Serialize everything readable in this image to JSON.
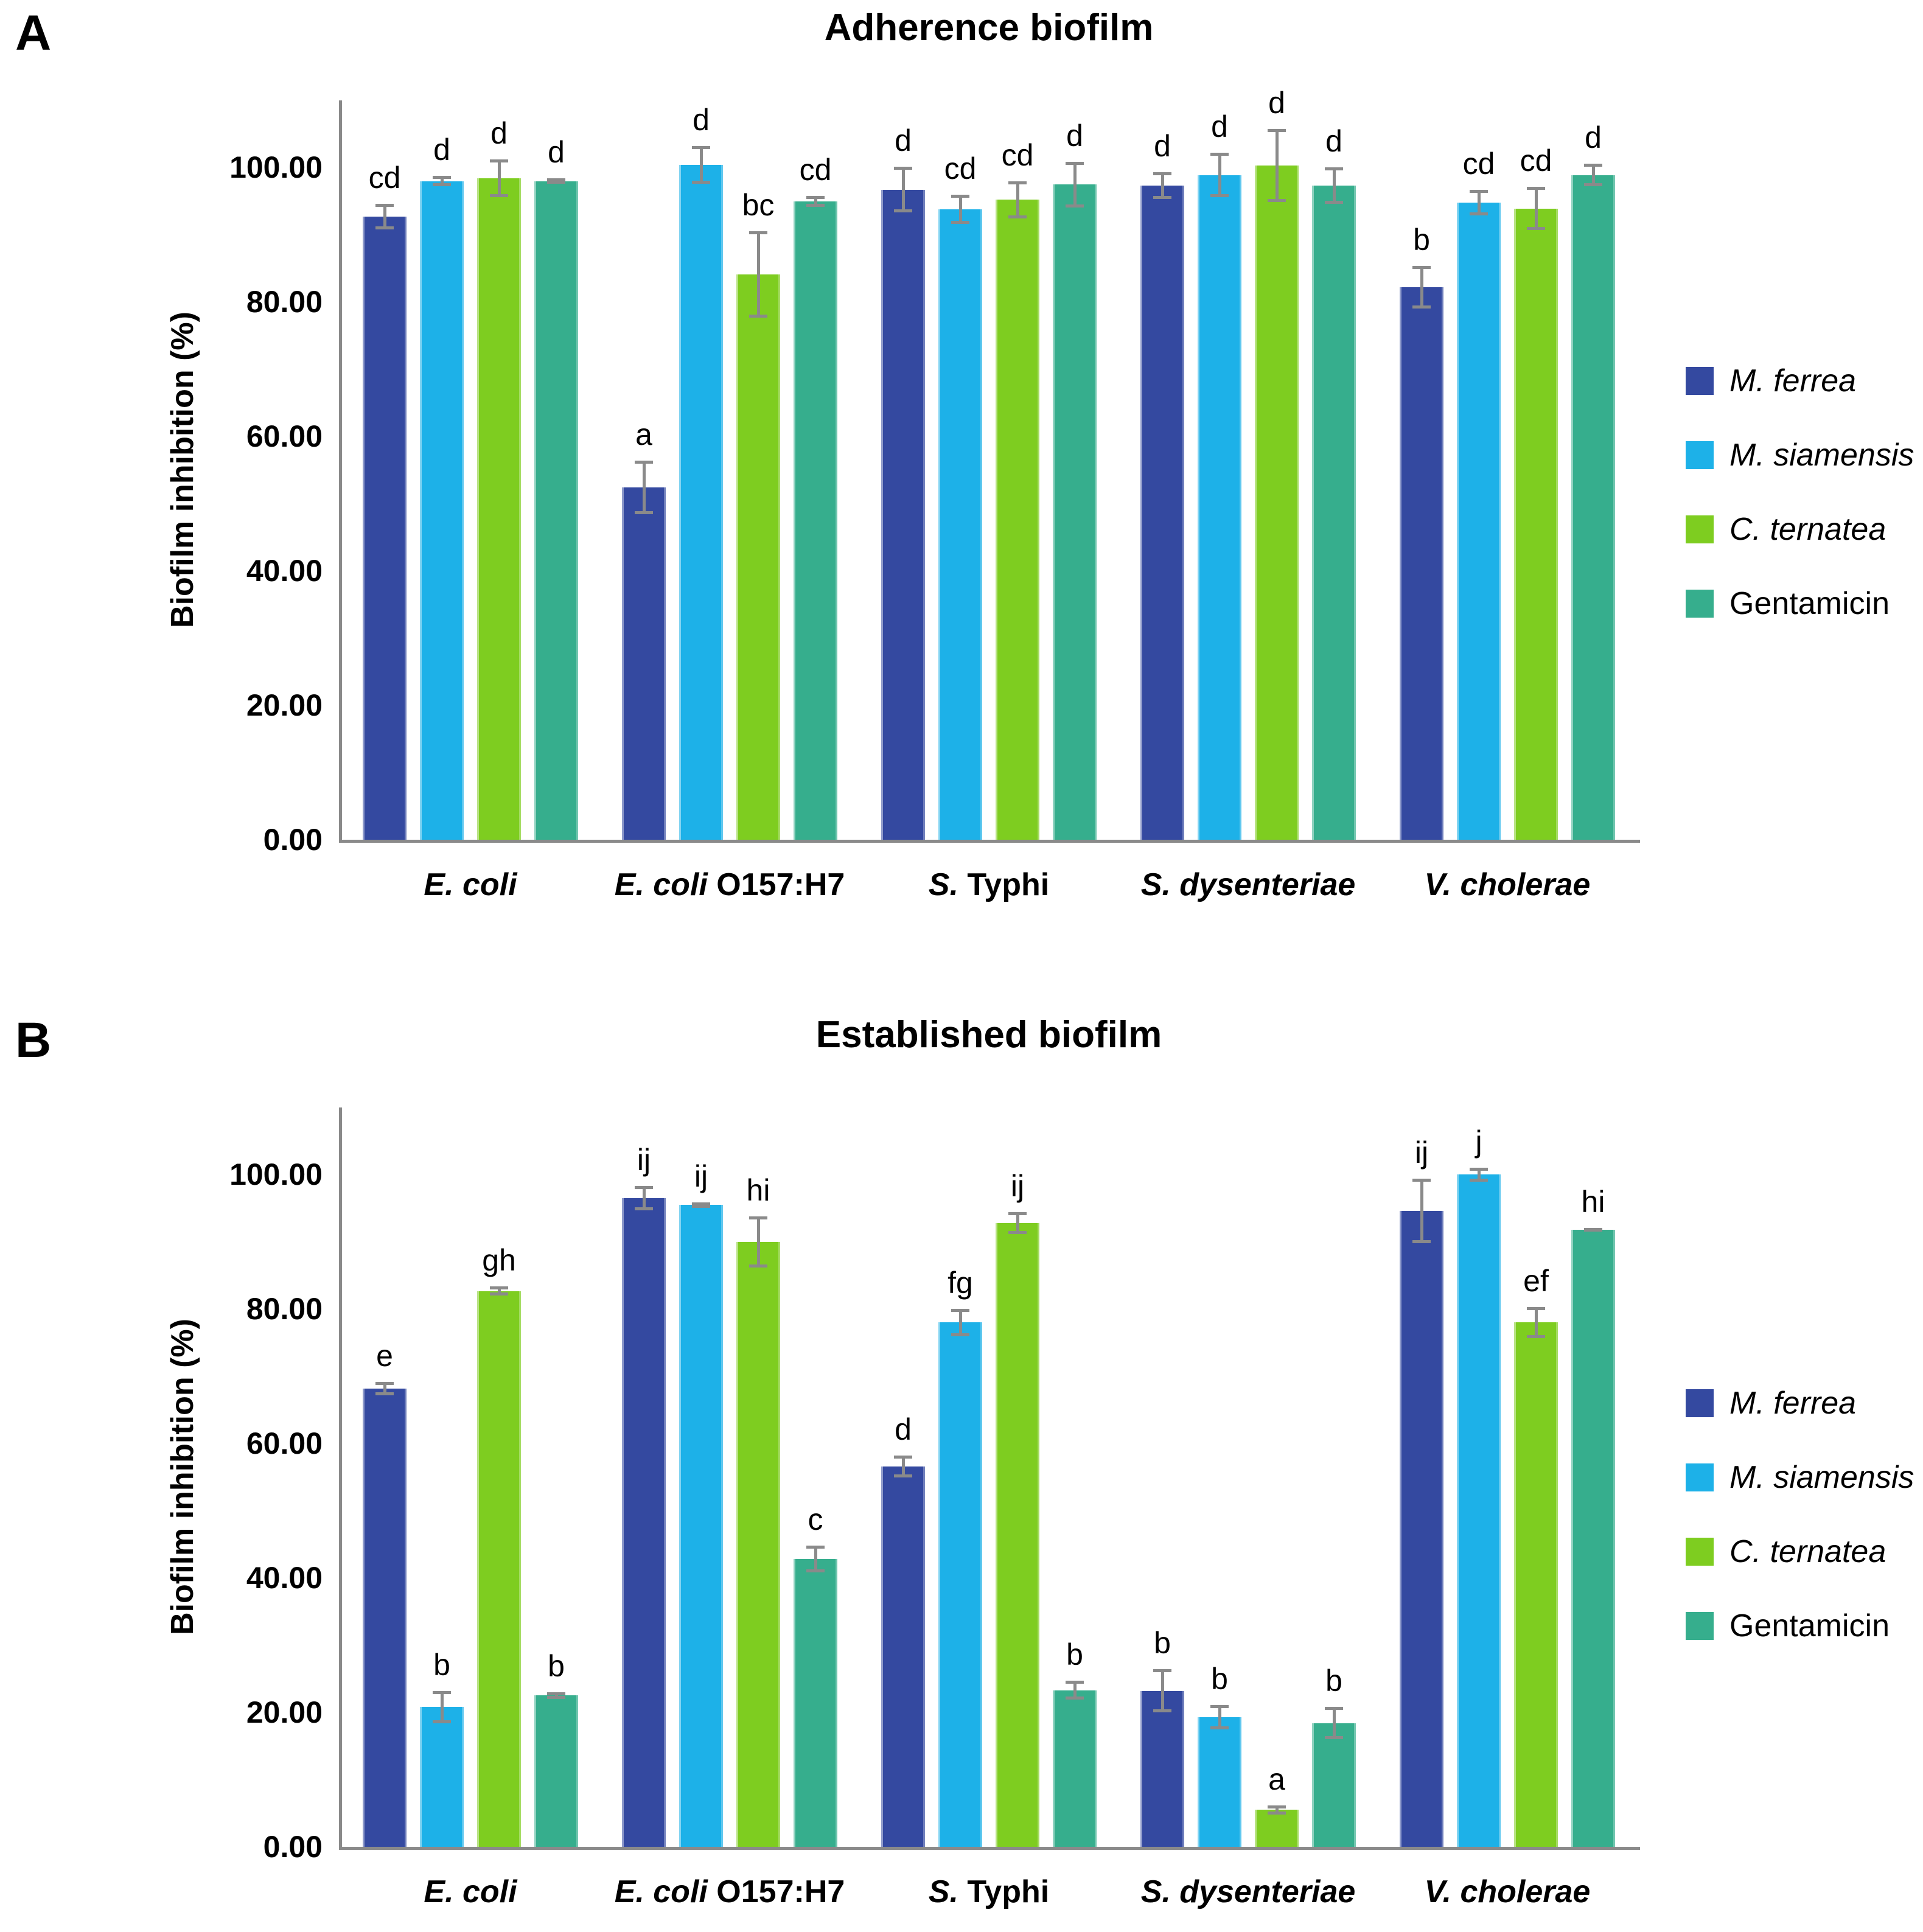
{
  "colors": {
    "m_ferrea": "#3449a0",
    "m_siamensis": "#1db1e8",
    "c_ternatea": "#7ecd20",
    "gentamicin": "#36ae8d",
    "error_bar": "#8a8a8a",
    "axis": "#8a8a8a",
    "text": "#000000",
    "background": "#ffffff"
  },
  "chart_data": [
    {
      "type": "bar",
      "panel_label": "A",
      "title": "Adherence biofilm",
      "ylabel": "Biofilm inhibition (%)",
      "ylim": [
        0,
        110
      ],
      "yticks": [
        0,
        20,
        40,
        60,
        80,
        100
      ],
      "ytick_labels": [
        "0.00",
        "20.00",
        "40.00",
        "60.00",
        "80.00",
        "100.00"
      ],
      "grid": false,
      "legend_position": "right",
      "error_bars": true,
      "categories": [
        "E. coli",
        "E. coli O157:H7",
        "S. Typhi",
        "S. dysenteriae",
        "V. cholerae"
      ],
      "categories_rich": [
        [
          {
            "text": "E. coli",
            "italic": true
          }
        ],
        [
          {
            "text": "E. coli ",
            "italic": true
          },
          {
            "text": "O157:H7",
            "italic": false
          }
        ],
        [
          {
            "text": "S.",
            "italic": true
          },
          {
            "text": " Typhi",
            "italic": false
          }
        ],
        [
          {
            "text": "S. dysenteriae",
            "italic": true
          }
        ],
        [
          {
            "text": "V. cholerae",
            "italic": true
          }
        ]
      ],
      "series": [
        {
          "name": "M. ferrea",
          "italic": true,
          "color": "#3449a0",
          "values": [
            92.7,
            52.4,
            96.7,
            97.3,
            82.2
          ],
          "errors": [
            1.9,
            4.0,
            3.4,
            2.0,
            3.2
          ],
          "letters": [
            "cd",
            "a",
            "d",
            "d",
            "b"
          ]
        },
        {
          "name": "M. siamensis",
          "italic": true,
          "color": "#1db1e8",
          "values": [
            98.0,
            100.4,
            93.8,
            98.9,
            94.8
          ],
          "errors": [
            0.8,
            2.8,
            2.2,
            3.3,
            1.9
          ],
          "letters": [
            "d",
            "d",
            "cd",
            "d",
            "cd"
          ]
        },
        {
          "name": "C. ternatea",
          "italic": true,
          "color": "#7ecd20",
          "values": [
            98.4,
            84.1,
            95.2,
            100.3,
            93.9
          ],
          "errors": [
            2.8,
            6.4,
            2.8,
            5.4,
            3.2
          ],
          "letters": [
            "d",
            "bc",
            "cd",
            "d",
            "cd"
          ]
        },
        {
          "name": "Gentamicin",
          "italic": false,
          "color": "#36ae8d",
          "values": [
            98.0,
            95.0,
            97.5,
            97.3,
            98.9
          ],
          "errors": [
            0.4,
            0.8,
            3.4,
            2.7,
            1.7
          ],
          "letters": [
            "d",
            "cd",
            "d",
            "d",
            "d"
          ]
        }
      ]
    },
    {
      "type": "bar",
      "panel_label": "B",
      "title": "Established biofilm",
      "ylabel": "Biofilm inhibition (%)",
      "ylim": [
        0,
        110
      ],
      "yticks": [
        0,
        20,
        40,
        60,
        80,
        100
      ],
      "ytick_labels": [
        "0.00",
        "20.00",
        "40.00",
        "60.00",
        "80.00",
        "100.00"
      ],
      "grid": false,
      "legend_position": "right",
      "error_bars": true,
      "categories": [
        "E. coli",
        "E. coli O157:H7",
        "S. Typhi",
        "S. dysenteriae",
        "V. cholerae"
      ],
      "categories_rich": [
        [
          {
            "text": "E. coli",
            "italic": true
          }
        ],
        [
          {
            "text": "E. coli ",
            "italic": true
          },
          {
            "text": "O157:H7",
            "italic": false
          }
        ],
        [
          {
            "text": "S.",
            "italic": true
          },
          {
            "text": " Typhi",
            "italic": false
          }
        ],
        [
          {
            "text": "S. dysenteriae",
            "italic": true
          }
        ],
        [
          {
            "text": "V. cholerae",
            "italic": true
          }
        ]
      ],
      "series": [
        {
          "name": "M. ferrea",
          "italic": true,
          "color": "#3449a0",
          "values": [
            68.2,
            96.5,
            56.6,
            23.2,
            94.6
          ],
          "errors": [
            1.0,
            1.8,
            1.6,
            3.2,
            4.8
          ],
          "letters": [
            "e",
            "ij",
            "d",
            "b",
            "ij"
          ]
        },
        {
          "name": "M. siamensis",
          "italic": true,
          "color": "#1db1e8",
          "values": [
            20.8,
            95.5,
            78.0,
            19.3,
            100.0
          ],
          "errors": [
            2.4,
            0.4,
            2.0,
            1.8,
            1.0
          ],
          "letters": [
            "b",
            "ij",
            "fg",
            "b",
            "j"
          ]
        },
        {
          "name": "C. ternatea",
          "italic": true,
          "color": "#7ecd20",
          "values": [
            82.7,
            90.0,
            92.8,
            5.5,
            78.0
          ],
          "errors": [
            0.7,
            3.8,
            1.6,
            0.7,
            2.3
          ],
          "letters": [
            "gh",
            "hi",
            "ij",
            "a",
            "ef"
          ]
        },
        {
          "name": "Gentamicin",
          "italic": false,
          "color": "#36ae8d",
          "values": [
            22.5,
            42.8,
            23.3,
            18.4,
            91.8
          ],
          "errors": [
            0.5,
            2.0,
            1.4,
            2.4,
            0.3
          ],
          "letters": [
            "b",
            "c",
            "b",
            "b",
            "hi"
          ]
        }
      ]
    }
  ]
}
